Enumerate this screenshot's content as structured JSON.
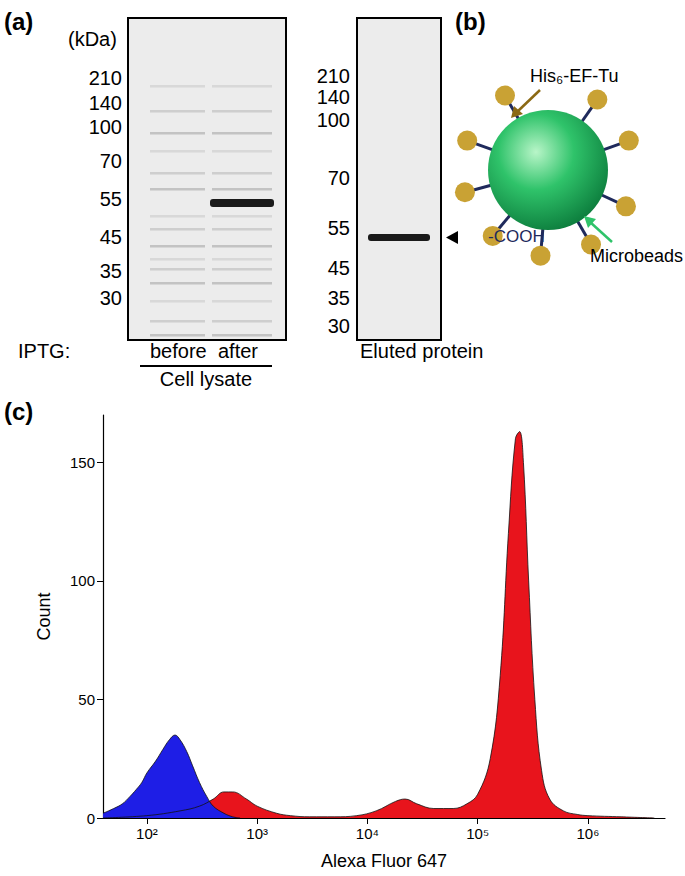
{
  "panel_a": {
    "label": "(a)",
    "unit": "(kDa)",
    "gels": [
      {
        "markers": [
          210,
          140,
          100,
          70,
          55,
          45,
          35,
          30
        ],
        "lane_prefix": "IPTG:",
        "lanes": [
          "before",
          "after"
        ],
        "group_label": "Cell lysate"
      },
      {
        "markers": [
          210,
          140,
          100,
          70,
          55,
          45,
          35,
          30
        ],
        "caption": "Eluted protein"
      }
    ]
  },
  "panel_b": {
    "label": "(b)",
    "protein_label": "His₆-EF-Tu",
    "group_label": "-COOH",
    "bead_label": "Microbeads"
  },
  "panel_c": {
    "label": "(c)"
  },
  "chart_data": {
    "type": "area",
    "x_label": "Alexa Fluor 647",
    "y_label": "Count",
    "log": "x",
    "grid": false,
    "xlim": [
      40,
      5000000
    ],
    "xticks": [
      {
        "value": 100,
        "label": "10²"
      },
      {
        "value": 1000,
        "label": "10³"
      },
      {
        "value": 10000,
        "label": "10⁴"
      },
      {
        "value": 100000,
        "label": "10⁵"
      },
      {
        "value": 1000000,
        "label": "10⁶"
      }
    ],
    "ylim": [
      0,
      170
    ],
    "yticks": [
      0,
      50,
      100,
      150
    ],
    "series": [
      {
        "color": "#e8141c",
        "x": [
          40,
          100,
          200,
          300,
          400,
          500,
          600,
          800,
          1000,
          1500,
          2000,
          3000,
          5000,
          8000,
          12000,
          18000,
          22000,
          28000,
          40000,
          60000,
          80000,
          100000,
          130000,
          160000,
          190000,
          220000,
          240000,
          260000,
          290000,
          330000,
          380000,
          450000,
          600000,
          800000,
          1000000,
          2000000,
          4000000
        ],
        "values": [
          0,
          1,
          3,
          5,
          8,
          11,
          11,
          8,
          5,
          2,
          1,
          0.5,
          0.5,
          1,
          3,
          7,
          8,
          6,
          4,
          4,
          6,
          10,
          25,
          60,
          120,
          160,
          163,
          150,
          100,
          50,
          20,
          8,
          3,
          1.5,
          1,
          0.5,
          0
        ]
      },
      {
        "color": "#1e1ee6",
        "x": [
          40,
          50,
          60,
          70,
          80,
          90,
          100,
          120,
          140,
          160,
          180,
          200,
          230,
          260,
          300,
          350,
          400,
          500,
          600,
          700
        ],
        "values": [
          2,
          4,
          6,
          9,
          12,
          15,
          19,
          24,
          29,
          33,
          35,
          33,
          28,
          22,
          15,
          9,
          5,
          2,
          0.5,
          0
        ]
      }
    ]
  }
}
